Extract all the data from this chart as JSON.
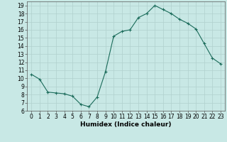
{
  "xlabel": "Humidex (Indice chaleur)",
  "x": [
    0,
    1,
    2,
    3,
    4,
    5,
    6,
    7,
    8,
    9,
    10,
    11,
    12,
    13,
    14,
    15,
    16,
    17,
    18,
    19,
    20,
    21,
    22,
    23
  ],
  "y": [
    10.5,
    9.9,
    8.3,
    8.2,
    8.1,
    7.8,
    6.8,
    6.5,
    7.7,
    10.8,
    15.2,
    15.8,
    16.0,
    17.5,
    18.0,
    19.0,
    18.5,
    18.0,
    17.3,
    16.8,
    16.1,
    14.3,
    12.5,
    11.8
  ],
  "xlim": [
    -0.5,
    23.5
  ],
  "ylim": [
    6,
    19.5
  ],
  "yticks": [
    6,
    7,
    8,
    9,
    10,
    11,
    12,
    13,
    14,
    15,
    16,
    17,
    18,
    19
  ],
  "xticks": [
    0,
    1,
    2,
    3,
    4,
    5,
    6,
    7,
    8,
    9,
    10,
    11,
    12,
    13,
    14,
    15,
    16,
    17,
    18,
    19,
    20,
    21,
    22,
    23
  ],
  "line_color": "#1a6b5a",
  "marker": "+",
  "bg_color": "#c8e8e5",
  "grid_color": "#b0d0cd",
  "label_fontsize": 6.5,
  "tick_fontsize": 5.5,
  "markersize": 3,
  "linewidth": 0.8
}
